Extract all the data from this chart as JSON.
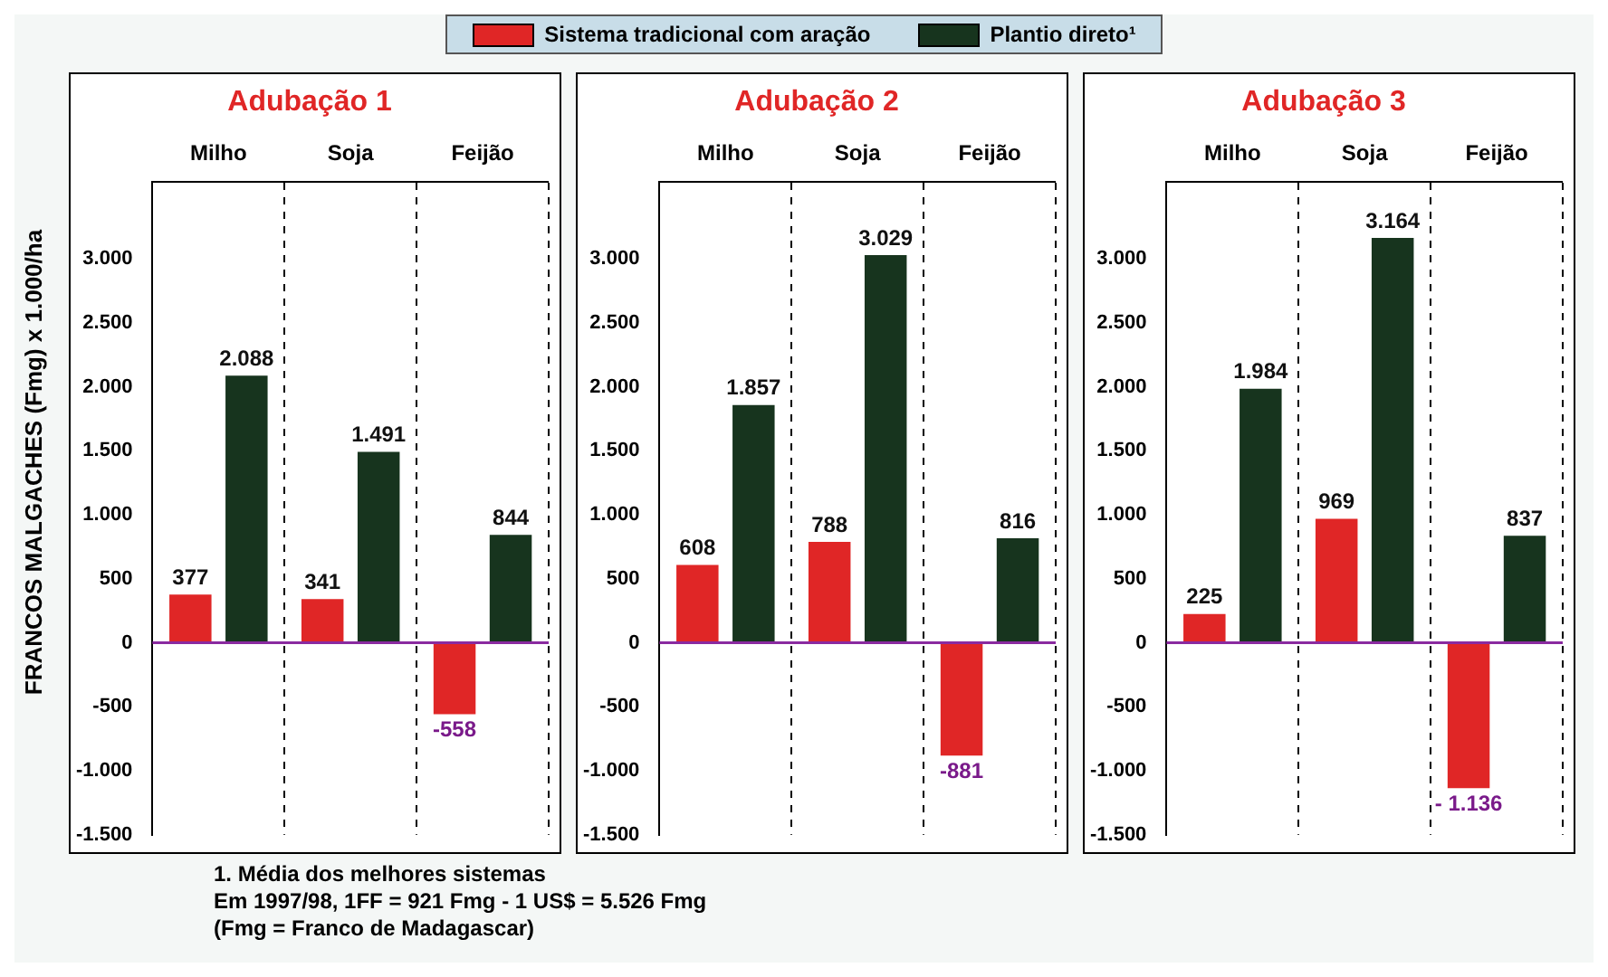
{
  "chart_data": [
    {
      "type": "bar",
      "title": "Adubação 1",
      "ylabel": "FRANCOS MALGACHES (Fmg) x 1.000/ha",
      "categories": [
        "Milho",
        "Soja",
        "Feijão"
      ],
      "series": [
        {
          "name": "Sistema tradicional com aração",
          "color": "#e02626",
          "values": [
            377,
            341,
            -558
          ],
          "value_labels": [
            "377",
            "341",
            "-558"
          ]
        },
        {
          "name": "Plantio direto¹",
          "color": "#17341e",
          "values": [
            2088,
            1491,
            844
          ],
          "value_labels": [
            "2.088",
            "1.491",
            "844"
          ]
        }
      ],
      "ref_lines": [
        {
          "axis": "y",
          "value": 0,
          "color": "#8a2aa0"
        }
      ],
      "ylim": [
        -1500,
        3600
      ],
      "yticks": [
        {
          "value": -1500,
          "label": "-1.500"
        },
        {
          "value": -1000,
          "label": "-1.000"
        },
        -500,
        0,
        500,
        {
          "value": 1000,
          "label": "1.000"
        },
        {
          "value": 1500,
          "label": "1.500"
        },
        {
          "value": 2000,
          "label": "2.000"
        },
        {
          "value": 2500,
          "label": "2.500"
        },
        {
          "value": 3000,
          "label": "3.000"
        }
      ],
      "grid": "x",
      "legend": "top",
      "annotations": [
        "1. Média dos melhores sistemas",
        "Em 1997/98, 1FF = 921 Fmg - 1 US$ = 5.526 Fmg",
        "(Fmg = Franco de Madagascar)"
      ]
    },
    {
      "type": "bar",
      "title": "Adubação 2",
      "categories": [
        "Milho",
        "Soja",
        "Feijão"
      ],
      "series": [
        {
          "color": "#e02626",
          "values": [
            608,
            788,
            -881
          ],
          "value_labels": [
            "608",
            "788",
            "-881"
          ]
        },
        {
          "color": "#17341e",
          "values": [
            1857,
            3029,
            816
          ],
          "value_labels": [
            "1.857",
            "3.029",
            "816"
          ]
        }
      ],
      "ref_lines": [
        {
          "axis": "y",
          "value": 0,
          "color": "#8a2aa0"
        }
      ],
      "ylim": [
        -1500,
        3600
      ],
      "yticks": [
        {
          "value": -1500,
          "label": "-1.500"
        },
        {
          "value": -1000,
          "label": "-1.000"
        },
        -500,
        0,
        500,
        {
          "value": 1000,
          "label": "1.000"
        },
        {
          "value": 1500,
          "label": "1.500"
        },
        {
          "value": 2000,
          "label": "2.000"
        },
        {
          "value": 2500,
          "label": "2.500"
        },
        {
          "value": 3000,
          "label": "3.000"
        }
      ],
      "grid": "x"
    },
    {
      "type": "bar",
      "title": "Adubação 3",
      "categories": [
        "Milho",
        "Soja",
        "Feijão"
      ],
      "series": [
        {
          "color": "#e02626",
          "values": [
            225,
            969,
            -1136
          ],
          "value_labels": [
            "225",
            "969",
            "- 1.136"
          ]
        },
        {
          "color": "#17341e",
          "values": [
            1984,
            3164,
            837
          ],
          "value_labels": [
            "1.984",
            "3.164",
            "837"
          ]
        }
      ],
      "ref_lines": [
        {
          "axis": "y",
          "value": 0,
          "color": "#8a2aa0"
        }
      ],
      "ylim": [
        -1500,
        3600
      ],
      "yticks": [
        {
          "value": -1500,
          "label": "-1.500"
        },
        {
          "value": -1000,
          "label": "-1.000"
        },
        -500,
        0,
        500,
        {
          "value": 1000,
          "label": "1.000"
        },
        {
          "value": 1500,
          "label": "1.500"
        },
        {
          "value": 2000,
          "label": "2.000"
        },
        {
          "value": 2500,
          "label": "2.500"
        },
        {
          "value": 3000,
          "label": "3.000"
        }
      ],
      "grid": "x"
    }
  ]
}
